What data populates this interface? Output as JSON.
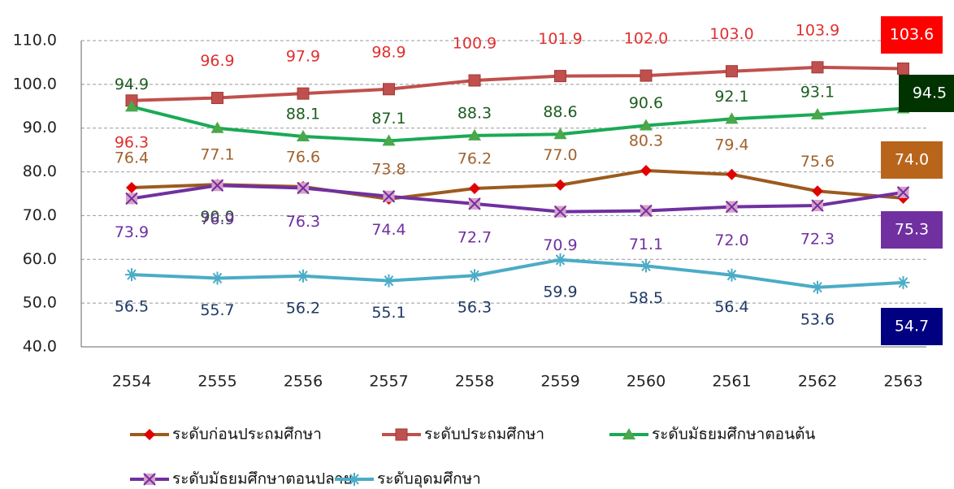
{
  "chart_data": {
    "type": "line",
    "categories": [
      "2554",
      "2555",
      "2556",
      "2557",
      "2558",
      "2559",
      "2560",
      "2561",
      "2562",
      "2563"
    ],
    "ylim": [
      40,
      110
    ],
    "yticks": [
      {
        "value": 40,
        "label": "40.0"
      },
      {
        "value": 50,
        "label": "50.0"
      },
      {
        "value": 60,
        "label": "60.0"
      },
      {
        "value": 70,
        "label": "70.0"
      },
      {
        "value": 80,
        "label": "80.0"
      },
      {
        "value": 90,
        "label": "90.0"
      },
      {
        "value": 100,
        "label": "100.0"
      },
      {
        "value": 110,
        "label": "110.0"
      }
    ],
    "grid": true,
    "legend": "bottom",
    "series": [
      {
        "name": "ระดับก่อนประถมศึกษา",
        "color": "#9c5b1e",
        "marker_color": "#e00000",
        "marker": "diamond",
        "values": [
          76.4,
          77.1,
          76.6,
          73.8,
          76.2,
          77.0,
          80.3,
          79.4,
          75.6,
          74.0
        ],
        "value_labels": [
          "76.4",
          "77.1",
          "76.6",
          "73.8",
          "76.2",
          "77.0",
          "80.3",
          "79.4",
          "75.6",
          "74.0"
        ]
      },
      {
        "name": "ระดับประถมศึกษา",
        "color": "#c0504d",
        "marker_color": "#c0504d",
        "marker": "square",
        "values": [
          96.3,
          96.9,
          97.9,
          98.9,
          100.9,
          101.9,
          102.0,
          103.0,
          103.9,
          103.6
        ],
        "value_labels": [
          "96.3",
          "96.9",
          "97.9",
          "98.9",
          "100.9",
          "101.9",
          "102.0",
          "103.0",
          "103.9",
          "103.6"
        ]
      },
      {
        "name": "ระดับมัธยมศึกษาตอนต้น",
        "color": "#1aaa55",
        "marker_color": "#4aa84a",
        "marker": "triangle",
        "values": [
          94.9,
          90.0,
          88.1,
          87.1,
          88.3,
          88.6,
          90.6,
          92.1,
          93.1,
          94.5
        ],
        "value_labels": [
          "94.9",
          "90.0",
          "88.1",
          "87.1",
          "88.3",
          "88.6",
          "90.6",
          "92.1",
          "93.1",
          "94.5"
        ]
      },
      {
        "name": "ระดับมัธยมศึกษาตอนปลาย",
        "color": "#7030a0",
        "marker_color": "#d9a0c8",
        "marker": "xsquare",
        "values": [
          73.9,
          76.9,
          76.3,
          74.4,
          72.7,
          70.9,
          71.1,
          72.0,
          72.3,
          75.3
        ],
        "value_labels": [
          "73.9",
          "76.9",
          "76.3",
          "74.4",
          "72.7",
          "70.9",
          "71.1",
          "72.0",
          "72.3",
          "75.3"
        ]
      },
      {
        "name": "ระดับอุดมศึกษา",
        "color": "#4bacc6",
        "marker_color": "#4bacc6",
        "marker": "star",
        "values": [
          56.5,
          55.7,
          56.2,
          55.1,
          56.3,
          59.9,
          58.5,
          56.4,
          53.6,
          54.7
        ],
        "value_labels": [
          "56.5",
          "55.7",
          "56.2",
          "55.1",
          "56.3",
          "59.9",
          "58.5",
          "56.4",
          "53.6",
          "54.7"
        ]
      }
    ]
  }
}
